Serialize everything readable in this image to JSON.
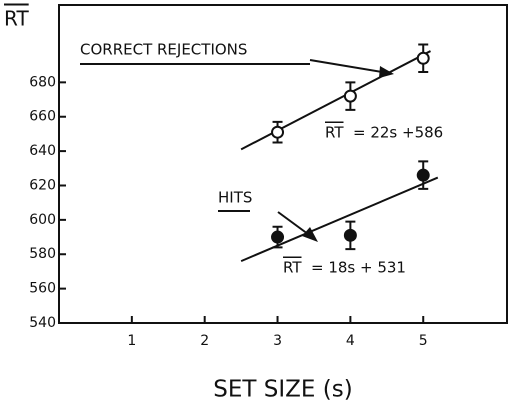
{
  "chart_data": {
    "type": "scatter",
    "y_label": "RT",
    "x_label": "SET SIZE (s)",
    "xlim": [
      0,
      6.15
    ],
    "ylim": [
      540,
      725
    ],
    "xticks": [
      1,
      2,
      3,
      4,
      5
    ],
    "yticks": [
      540,
      560,
      580,
      600,
      620,
      640,
      660,
      680
    ],
    "series": [
      {
        "name": "CORRECT REJECTIONS",
        "marker": "open",
        "color": "#111",
        "x": [
          3,
          4,
          5
        ],
        "values": [
          651,
          672,
          694
        ],
        "errors": [
          6,
          8,
          8
        ],
        "fit_x": [
          2.5,
          5.1
        ],
        "fit_values": [
          641,
          698.2
        ],
        "equation_lhs": "RT",
        "equation_rhs": "= 22s +586"
      },
      {
        "name": "HITS",
        "marker": "filled",
        "color": "#111",
        "x": [
          3,
          4,
          5
        ],
        "values": [
          590,
          591,
          626
        ],
        "errors": [
          6,
          8,
          8
        ],
        "fit_x": [
          2.5,
          5.2
        ],
        "fit_values": [
          576,
          624.6
        ],
        "equation_lhs": "RT",
        "equation_rhs": "= 18s + 531"
      }
    ]
  }
}
